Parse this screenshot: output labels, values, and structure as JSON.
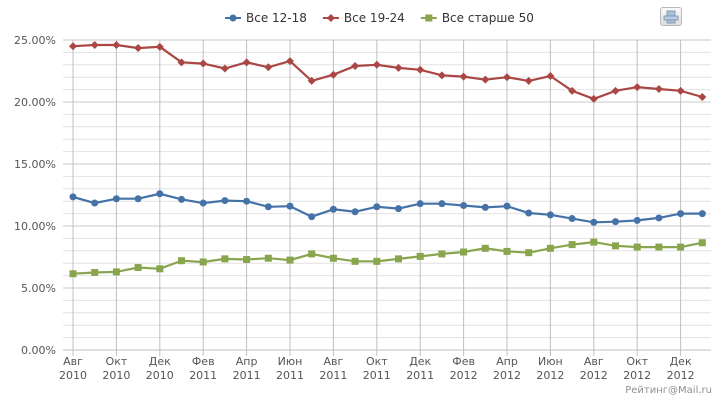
{
  "chart_data": {
    "type": "line",
    "title": "",
    "xlabel": "",
    "ylabel": "",
    "ylim": [
      0,
      25
    ],
    "y_ticks": [
      "0.00%",
      "5.00%",
      "10.00%",
      "15.00%",
      "20.00%",
      "25.00%"
    ],
    "y_tick_values": [
      0,
      5,
      10,
      15,
      20,
      25
    ],
    "x_tick_labels": [
      [
        "Авг",
        "2010"
      ],
      [
        "Окт",
        "2010"
      ],
      [
        "Дек",
        "2010"
      ],
      [
        "Фев",
        "2011"
      ],
      [
        "Апр",
        "2011"
      ],
      [
        "Июн",
        "2011"
      ],
      [
        "Авг",
        "2011"
      ],
      [
        "Окт",
        "2011"
      ],
      [
        "Дек",
        "2011"
      ],
      [
        "Фев",
        "2012"
      ],
      [
        "Апр",
        "2012"
      ],
      [
        "Июн",
        "2012"
      ],
      [
        "Авг",
        "2012"
      ],
      [
        "Окт",
        "2012"
      ],
      [
        "Дек",
        "2012"
      ]
    ],
    "x": [
      "2010-08",
      "2010-09",
      "2010-10",
      "2010-11",
      "2010-12",
      "2011-01",
      "2011-02",
      "2011-03",
      "2011-04",
      "2011-05",
      "2011-06",
      "2011-07",
      "2011-08",
      "2011-09",
      "2011-10",
      "2011-11",
      "2011-12",
      "2012-01",
      "2012-02",
      "2012-03",
      "2012-04",
      "2012-05",
      "2012-06",
      "2012-07",
      "2012-08",
      "2012-09",
      "2012-10",
      "2012-11",
      "2012-12",
      "2013-01"
    ],
    "grid": true,
    "legend_position": "top-center",
    "series": [
      {
        "name": "Все 12-18",
        "color": "#4572a7",
        "marker": "circle",
        "values": [
          12.35,
          11.85,
          12.2,
          12.2,
          12.6,
          12.15,
          11.85,
          12.05,
          12.0,
          11.55,
          11.6,
          10.75,
          11.35,
          11.15,
          11.55,
          11.4,
          11.8,
          11.8,
          11.65,
          11.5,
          11.6,
          11.05,
          10.9,
          10.6,
          10.3,
          10.35,
          10.45,
          10.65,
          11.0,
          11.0
        ]
      },
      {
        "name": "Все 19-24",
        "color": "#aa4643",
        "marker": "diamond",
        "values": [
          24.5,
          24.6,
          24.6,
          24.35,
          24.45,
          23.2,
          23.1,
          22.7,
          23.2,
          22.8,
          23.3,
          21.7,
          22.2,
          22.9,
          23.0,
          22.75,
          22.6,
          22.15,
          22.05,
          21.8,
          22.0,
          21.7,
          22.1,
          20.9,
          20.25,
          20.9,
          21.2,
          21.05,
          20.9,
          20.4
        ]
      },
      {
        "name": "Все старше 50",
        "color": "#89a54e",
        "marker": "square",
        "values": [
          6.15,
          6.25,
          6.3,
          6.65,
          6.55,
          7.2,
          7.1,
          7.35,
          7.3,
          7.4,
          7.25,
          7.75,
          7.4,
          7.15,
          7.15,
          7.35,
          7.55,
          7.75,
          7.9,
          8.2,
          7.95,
          7.85,
          8.2,
          8.5,
          8.7,
          8.4,
          8.3,
          8.3,
          8.3,
          8.65
        ]
      }
    ]
  },
  "credit": "Рейтинг@Mail.ru",
  "icons": {
    "print": "printer-icon"
  }
}
